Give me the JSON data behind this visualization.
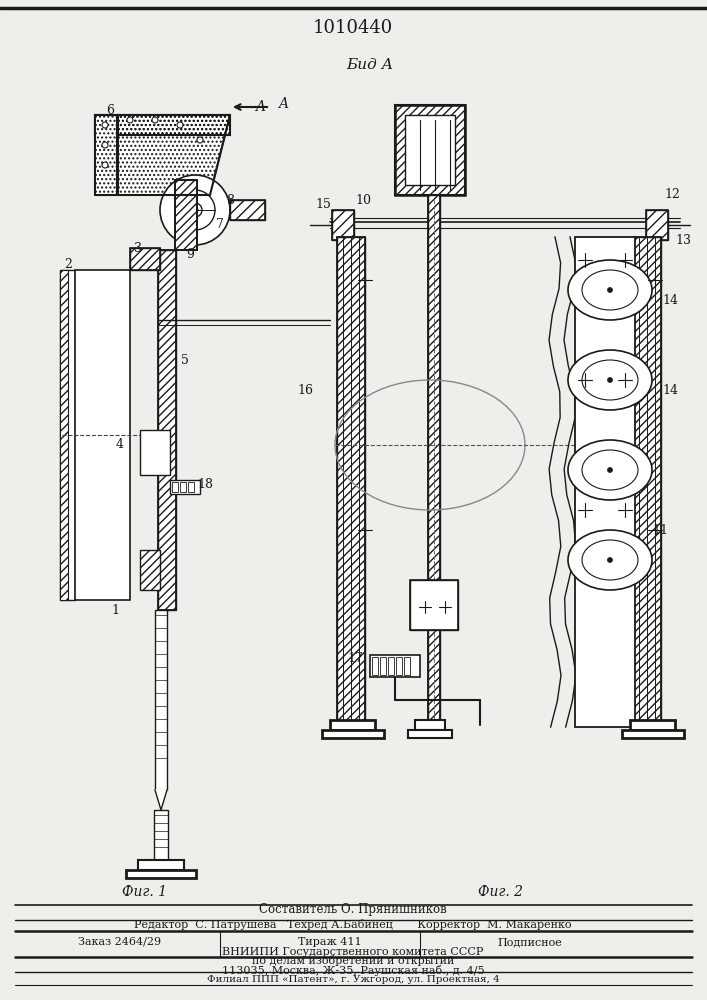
{
  "title": "1010440",
  "fig1_caption": "Фиг. 1",
  "fig2_caption": "Фиг. 2",
  "view_label": "Бид А",
  "arrow_label": "A",
  "bg": "#f0eeea",
  "lc": "#1a1a1a",
  "footer_line0": "Составитель О. Прянишников",
  "footer_line1": "Редактор  С. Патрушева   Техред А.Бабинец       Корректор  М. Макаренко",
  "footer_line2": "Заказ 2464/29        Тираж 411         Подписное",
  "footer_line3": "ВНИИПИ Государственного комитета СССР",
  "footer_line4": "по делам изобретений и открытий",
  "footer_line5": "113035, Москва, Ж-35, Раушская наб., д. 4/5",
  "footer_line6": "Филиал ППП «Патент», г. Ужгород, ул. Проектная, 4"
}
